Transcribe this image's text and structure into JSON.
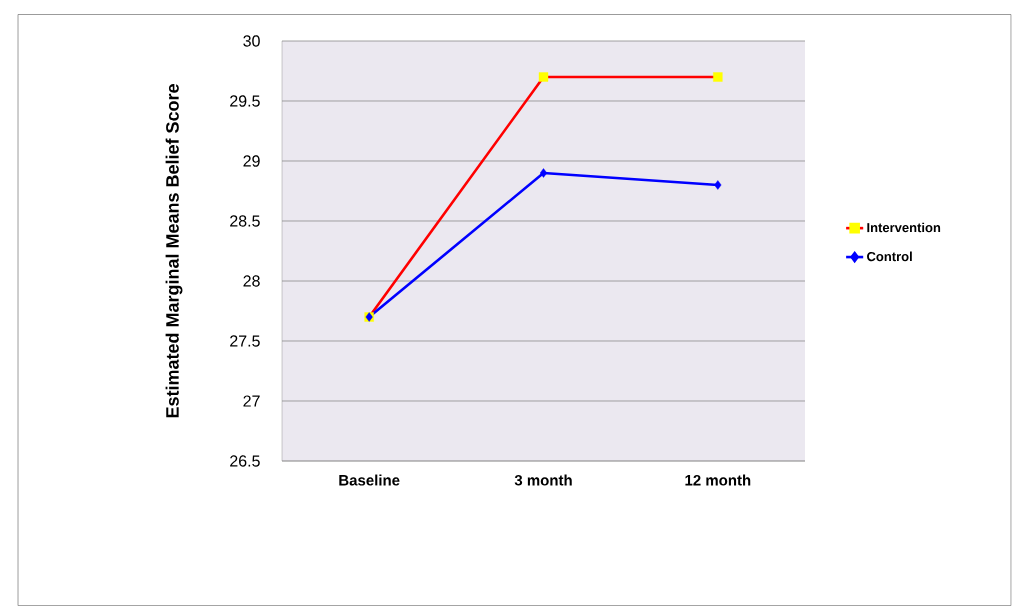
{
  "chart_data": {
    "type": "line",
    "ylabel": "Estimated Marginal Means Belief Score",
    "categories": [
      "Baseline",
      "3 month",
      "12 month"
    ],
    "series": [
      {
        "name": "Intervention",
        "color": "#ff0000",
        "colors": [
          "#ffff00",
          "#ffff00",
          "#ffff00"
        ],
        "marker": "square",
        "values": [
          27.7,
          29.7,
          29.7
        ]
      },
      {
        "name": "Control",
        "color": "#0000ff",
        "colors": [
          "#0000ff",
          "#0000ff",
          "#0000ff"
        ],
        "marker": "diamond",
        "values": [
          27.7,
          28.9,
          28.8
        ]
      }
    ],
    "ylim": [
      26.5,
      30
    ],
    "yticks": [
      26.5,
      27,
      27.5,
      28,
      28.5,
      29,
      29.5,
      30
    ],
    "grid": "y",
    "legend": "right",
    "line_style": "solid"
  }
}
